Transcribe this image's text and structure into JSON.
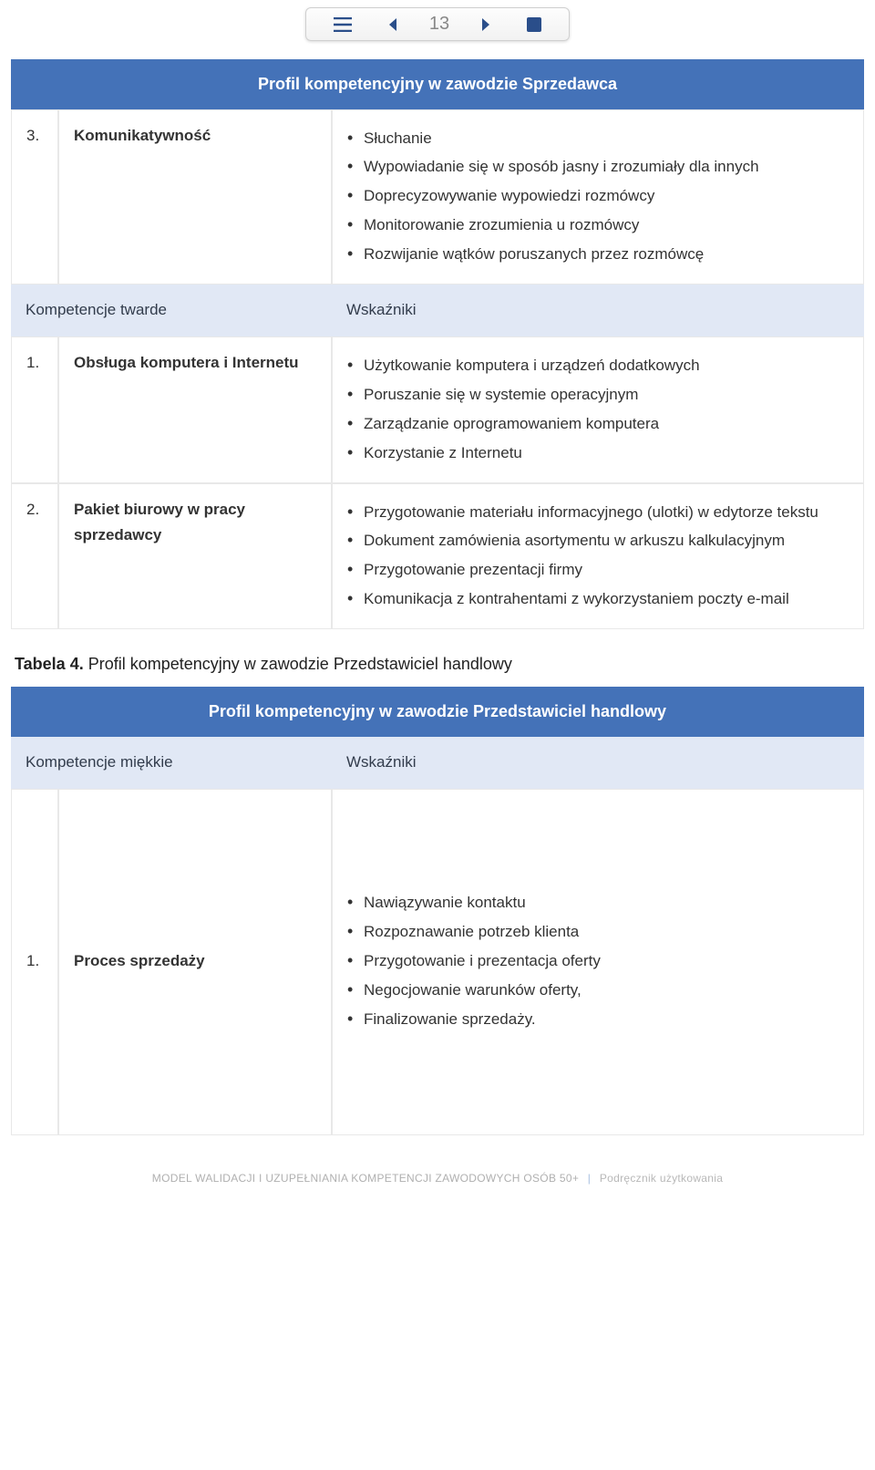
{
  "colors": {
    "accent": "#4472b8",
    "subhead_bg": "#e1e8f5",
    "toolbar_icon": "#2a4e8a",
    "border": "#e8e8e8"
  },
  "toolbar": {
    "page_number": "13"
  },
  "table1": {
    "title": "Profil kompetencyjny w zawodzie Sprzedawca",
    "row1": {
      "num": "3.",
      "name": "Komunikatywność",
      "items": [
        "Słuchanie",
        "Wypowiadanie się w sposób jasny i zrozumiały dla innych",
        "Doprecyzowywanie wypowiedzi rozmówcy",
        "Monitorowanie zrozumienia u rozmówcy",
        "Rozwijanie wątków poruszanych przez rozmówcę"
      ]
    },
    "subhead": {
      "left": "Kompetencje twarde",
      "right": "Wskaźniki"
    },
    "row2": {
      "num": "1.",
      "name": "Obsługa komputera i Internetu",
      "items": [
        "Użytkowanie komputera i urządzeń dodatkowych",
        "Poruszanie się w systemie operacyjnym",
        "Zarządzanie oprogramowaniem komputera",
        "Korzystanie z Internetu"
      ]
    },
    "row3": {
      "num": "2.",
      "name": "Pakiet biurowy w pracy sprzedawcy",
      "items": [
        "Przygotowanie materiału informacyjnego (ulotki) w edytorze tekstu",
        "Dokument zamówienia asortymentu w arkuszu kalkulacyjnym",
        "Przygotowanie prezentacji firmy",
        "Komunikacja z kontrahentami z wykorzystaniem poczty e-mail"
      ]
    }
  },
  "caption": {
    "bold": "Tabela 4.",
    "rest": " Profil kompetencyjny w zawodzie Przedstawiciel handlowy"
  },
  "table2": {
    "title": "Profil kompetencyjny w zawodzie Przedstawiciel handlowy",
    "subhead": {
      "left": "Kompetencje miękkie",
      "right": "Wskaźniki"
    },
    "row1": {
      "num": "1.",
      "name": "Proces sprzedaży",
      "items": [
        "Nawiązywanie kontaktu",
        "Rozpoznawanie potrzeb klienta",
        "Przygotowanie i prezentacja oferty",
        "Negocjowanie warunków oferty,",
        "Finalizowanie sprzedaży."
      ]
    }
  },
  "footer": {
    "main": "MODEL WALIDACJI I UZUPEŁNIANIA KOMPETENCJI ZAWODOWYCH OSÓB 50+",
    "sub": "Podręcznik użytkowania"
  }
}
